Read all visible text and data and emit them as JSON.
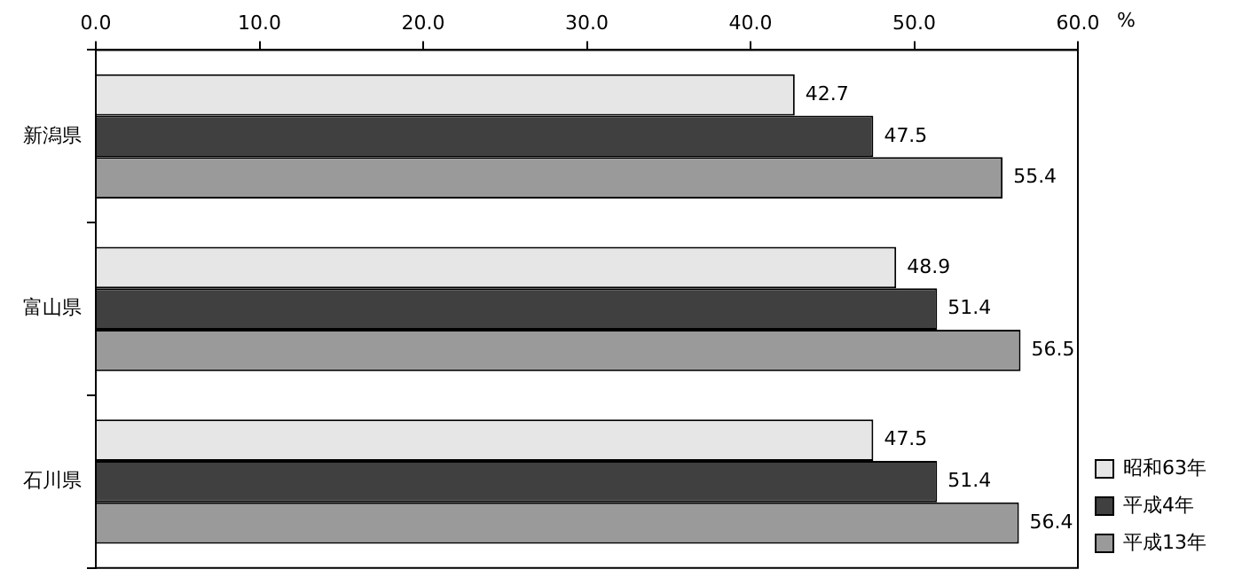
{
  "chart_data": {
    "type": "bar",
    "orientation": "horizontal",
    "xlabel": "%",
    "categories": [
      "新潟県",
      "富山県",
      "石川県"
    ],
    "series": [
      {
        "name": "昭和63年",
        "color": "#e6e6e6",
        "values": [
          42.7,
          48.9,
          47.5
        ]
      },
      {
        "name": "平成4年",
        "color": "#404040",
        "values": [
          47.5,
          51.4,
          51.4
        ]
      },
      {
        "name": "平成13年",
        "color": "#9a9a9a",
        "values": [
          55.4,
          56.5,
          56.4
        ]
      }
    ],
    "xlim": [
      0,
      60
    ],
    "xticks": [
      {
        "value": 0,
        "label": "0.0"
      },
      {
        "value": 10,
        "label": "10.0"
      },
      {
        "value": 20,
        "label": "20.0"
      },
      {
        "value": 30,
        "label": "30.0"
      },
      {
        "value": 40,
        "label": "40.0"
      },
      {
        "value": 50,
        "label": "50.0"
      },
      {
        "value": 60,
        "label": "60.0"
      }
    ],
    "grid": false,
    "legend": "bottom right",
    "data_labels": true
  }
}
